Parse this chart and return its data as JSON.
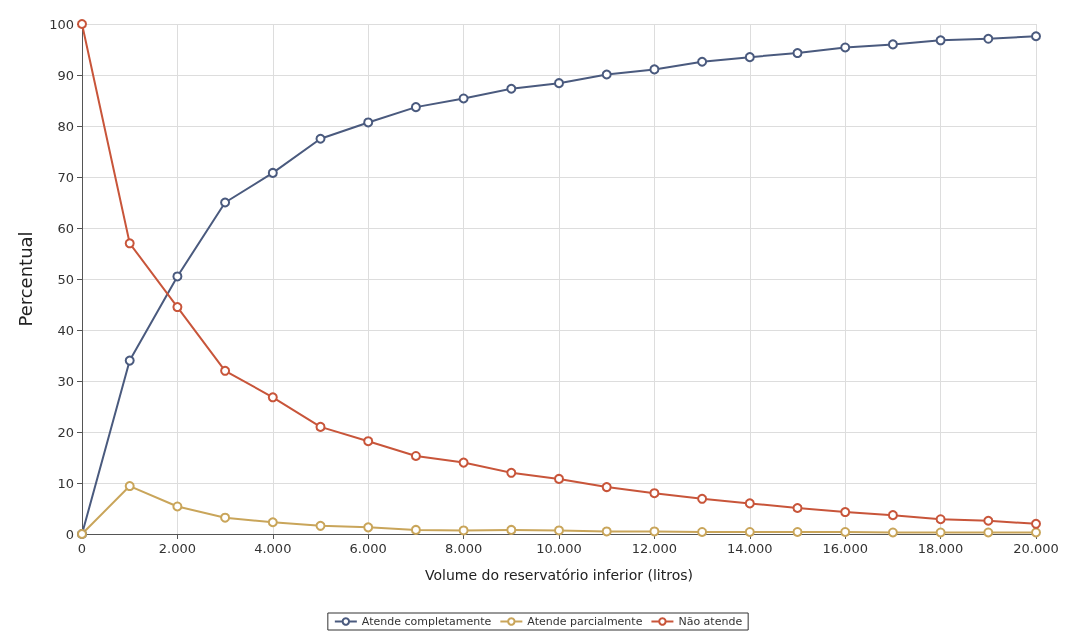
{
  "chart_data": {
    "type": "line",
    "xlabel": "Volume do reservatório inferior (litros)",
    "ylabel": "Percentual",
    "x": [
      0,
      1000,
      2000,
      3000,
      4000,
      5000,
      6000,
      7000,
      8000,
      9000,
      10000,
      11000,
      12000,
      13000,
      14000,
      15000,
      16000,
      17000,
      18000,
      19000,
      20000
    ],
    "series": [
      {
        "name": "Atende completamente",
        "color": "#4a5a7e",
        "values": [
          0,
          34,
          50.5,
          65,
          70.8,
          77.5,
          80.7,
          83.7,
          85.4,
          87.3,
          88.4,
          90.1,
          91.1,
          92.6,
          93.5,
          94.3,
          95.4,
          96,
          96.8,
          97.1,
          97.6
        ]
      },
      {
        "name": "Atende parcialmente",
        "color": "#c9a55a",
        "values": [
          0,
          9.4,
          5.4,
          3.2,
          2.3,
          1.6,
          1.3,
          0.8,
          0.7,
          0.8,
          0.7,
          0.5,
          0.5,
          0.4,
          0.4,
          0.4,
          0.4,
          0.3,
          0.3,
          0.3,
          0.3
        ]
      },
      {
        "name": "Não atende",
        "color": "#c8553a",
        "values": [
          100,
          57,
          44.5,
          32,
          26.8,
          21,
          18.2,
          15.3,
          14,
          12,
          10.8,
          9.2,
          8,
          6.9,
          6,
          5.1,
          4.3,
          3.7,
          2.9,
          2.6,
          2
        ]
      }
    ],
    "xlim": [
      0,
      20000
    ],
    "xticks": [
      {
        "value": 0,
        "label": "0"
      },
      {
        "value": 2000,
        "label": "2.000"
      },
      {
        "value": 4000,
        "label": "4.000"
      },
      {
        "value": 6000,
        "label": "6.000"
      },
      {
        "value": 8000,
        "label": "8.000"
      },
      {
        "value": 10000,
        "label": "10.000"
      },
      {
        "value": 12000,
        "label": "12.000"
      },
      {
        "value": 14000,
        "label": "14.000"
      },
      {
        "value": 16000,
        "label": "16.000"
      },
      {
        "value": 18000,
        "label": "18.000"
      },
      {
        "value": 20000,
        "label": "20.000"
      }
    ],
    "ylim": [
      0,
      100
    ],
    "yticks": [
      0,
      10,
      20,
      30,
      40,
      50,
      60,
      70,
      80,
      90,
      100
    ],
    "grid": true,
    "legend": "bottom",
    "marker": "circle",
    "line_style": "solid"
  }
}
